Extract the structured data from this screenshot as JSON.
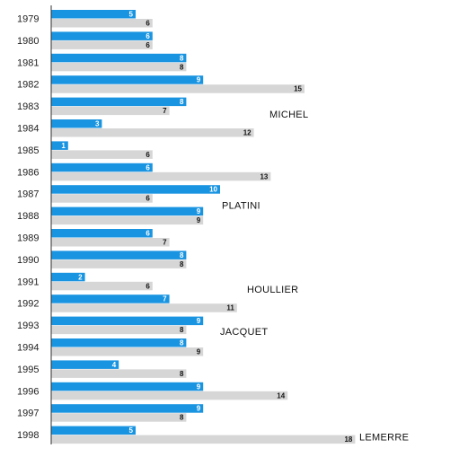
{
  "colors": {
    "series_a": "#1994e1",
    "series_b": "#d6d6d6",
    "axis": "#333333"
  },
  "chart_data": {
    "type": "bar",
    "orientation": "horizontal",
    "categories": [
      "1979",
      "1980",
      "1981",
      "1982",
      "1983",
      "1984",
      "1985",
      "1986",
      "1987",
      "1988",
      "1989",
      "1990",
      "1991",
      "1992",
      "1993",
      "1994",
      "1995",
      "1996",
      "1997",
      "1998"
    ],
    "series": [
      {
        "values": [
          5,
          6,
          8,
          9,
          8,
          3,
          1,
          6,
          10,
          9,
          6,
          8,
          2,
          7,
          9,
          8,
          4,
          9,
          9,
          5
        ]
      },
      {
        "values": [
          6,
          6,
          8,
          15,
          7,
          12,
          6,
          13,
          6,
          9,
          7,
          8,
          6,
          11,
          8,
          9,
          8,
          14,
          8,
          18
        ]
      }
    ],
    "xlim": [
      0,
      18
    ],
    "grid": false,
    "legend": "none",
    "annotations": [
      {
        "text": "MICHEL",
        "category": "1984"
      },
      {
        "text": "PLATINI",
        "category": "1988"
      },
      {
        "text": "HOULLIER",
        "category": "1992"
      },
      {
        "text": "JACQUET",
        "category": "1994"
      },
      {
        "text": "LEMERRE",
        "category": "1998"
      }
    ]
  }
}
